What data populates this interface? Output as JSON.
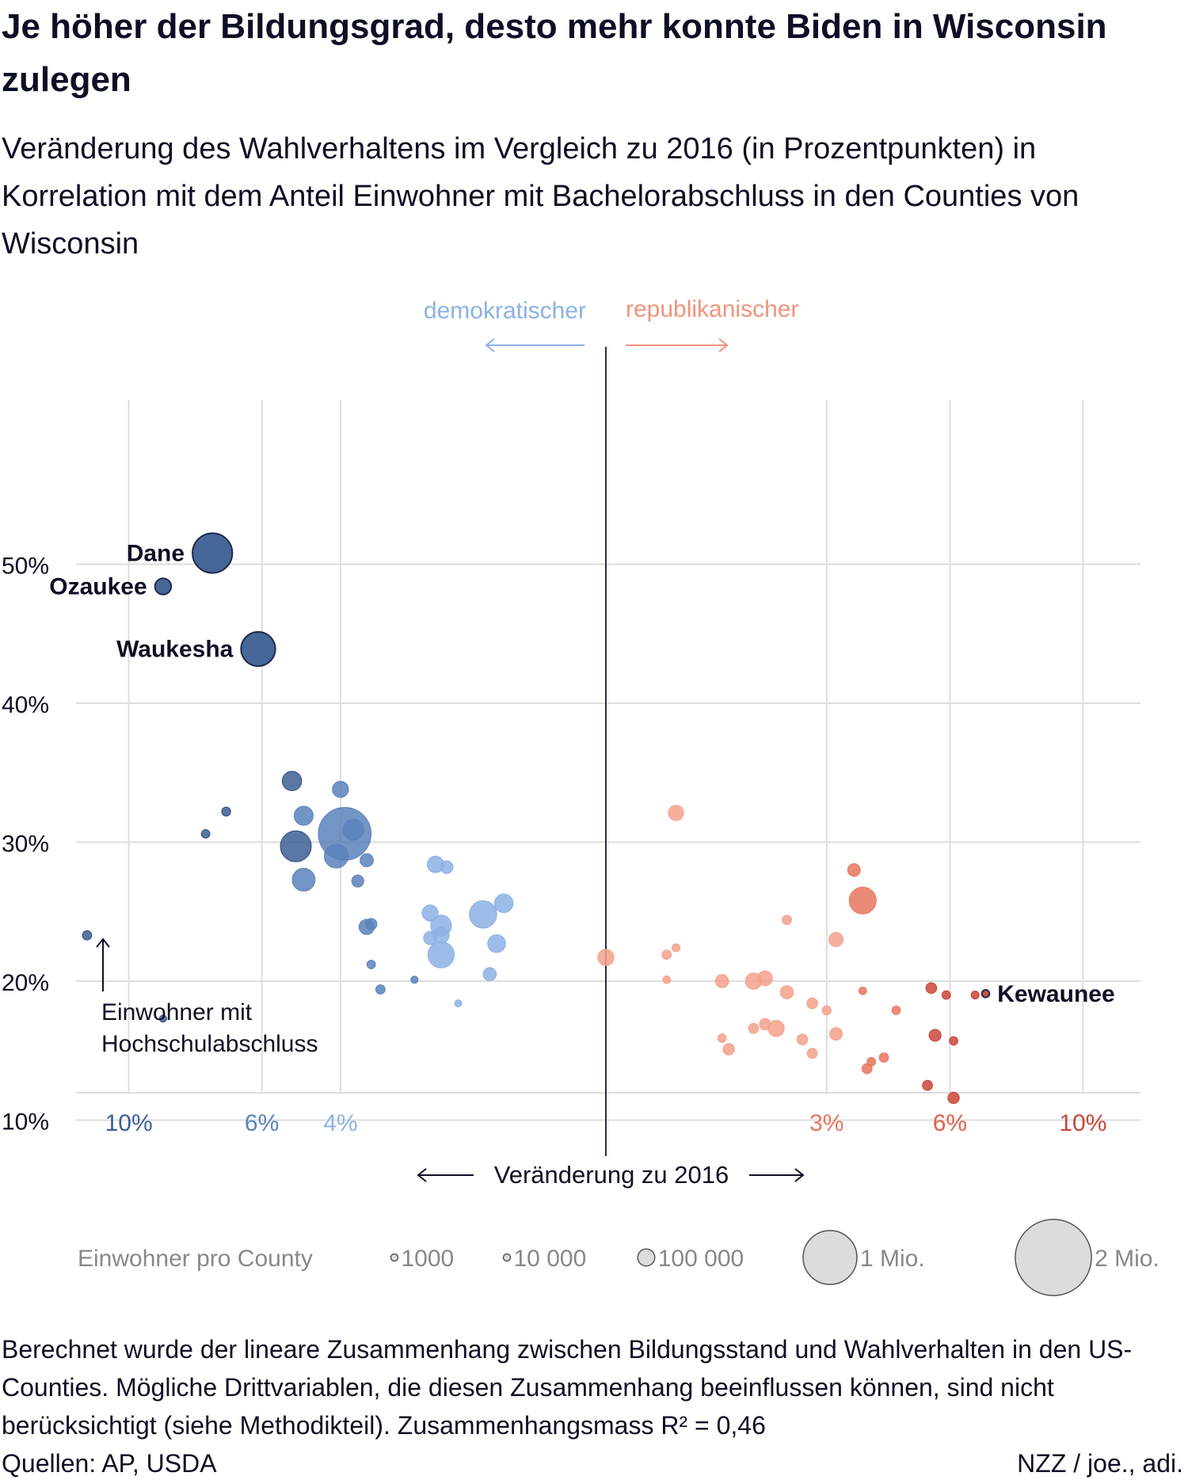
{
  "header": {
    "title": "Je höher der Bildungsgrad, desto mehr konnte Biden in Wisconsin zulegen",
    "subtitle": "Veränderung des Wahlverhaltens im Vergleich zu 2016 (in Prozentpunkten) in Korrelation mit dem Anteil Einwohner mit Bachelorabschluss in den Counties von Wisconsin"
  },
  "footer": {
    "note": "Berechnet wurde der lineare Zusammenhang zwischen Bildungsstand und Wahlverhalten in den US-Counties. Mögliche Drittvariablen, die diesen Zusammenhang beeinflussen können, sind nicht berücksichtigt (siehe Methodikteil). Zusammenhangsmass R² = 0,46",
    "source": "Quellen: AP, USDA",
    "credit": "NZZ / joe., adi."
  },
  "colors": {
    "dem_dark": "#3d5f93",
    "dem_mid": "#5b82bb",
    "dem_light": "#8cb2e4",
    "rep_light": "#f5a18b",
    "rep_mid": "#e8765f",
    "rep_dark": "#c9473a",
    "axis_label_dem": "#8cb2e4",
    "axis_label_rep": "#f0937c",
    "grid": "#dddddd",
    "center_line": "#2b2d4a",
    "text": "#0d0f24",
    "legend_text": "#888888",
    "legend_fill": "#dcdcdc"
  },
  "chart_data": {
    "type": "scatter",
    "title": "Je höher der Bildungsgrad, desto mehr konnte Biden in Wisconsin zulegen",
    "xlabel": "Veränderung zu 2016",
    "ylabel": "Einwohner mit Hochschulabschluss",
    "x_scale": "signed symmetric power scale (shift in percentage points, negative = demokratischer)",
    "xlim": [
      -13.5,
      12
    ],
    "ylim": [
      0,
      55
    ],
    "x_ticks": [
      {
        "value": -10,
        "label": "10%",
        "color": "#3d5f93"
      },
      {
        "value": -6,
        "label": "6%",
        "color": "#5b82bb"
      },
      {
        "value": -4,
        "label": "4%",
        "color": "#8cb2e4"
      },
      {
        "value": 3,
        "label": "3%",
        "color": "#e8765f"
      },
      {
        "value": 6,
        "label": "6%",
        "color": "#e0604c"
      },
      {
        "value": 10,
        "label": "10%",
        "color": "#c9473a"
      }
    ],
    "y_ticks": [
      {
        "value": 50,
        "label": "50%"
      },
      {
        "value": 40,
        "label": "40%"
      },
      {
        "value": 30,
        "label": "30%"
      },
      {
        "value": 20,
        "label": "20%"
      },
      {
        "value": 10,
        "label": "10%"
      }
    ],
    "direction_labels": {
      "left": "demokratischer",
      "right": "republikanischer"
    },
    "axis_title": "Veränderung zu 2016",
    "y_axis_title": "Einwohner mit Hochschulabschluss",
    "grid": true,
    "legend": {
      "title": "Einwohner pro County",
      "position": "bottom",
      "items": [
        {
          "label": "1000",
          "population": 1000
        },
        {
          "label": "10 000",
          "population": 10000
        },
        {
          "label": "100 000",
          "population": 100000
        },
        {
          "label": "1 Mio.",
          "population": 1000000
        },
        {
          "label": "2 Mio.",
          "population": 2000000
        }
      ]
    },
    "points": [
      {
        "name": "Dane",
        "x": -7.4,
        "y": 50.8,
        "pop": 546000,
        "label": "Dane"
      },
      {
        "name": "Ozaukee",
        "x": -8.9,
        "y": 48.4,
        "pop": 90000,
        "label": "Ozaukee"
      },
      {
        "name": "Waukesha",
        "x": -6.1,
        "y": 43.9,
        "pop": 404000,
        "label": "Waukesha"
      },
      {
        "name": "Kewaunee",
        "x": 7.0,
        "y": 19.1,
        "pop": 20000,
        "label": "Kewaunee"
      },
      {
        "x": -11.4,
        "y": 23.3,
        "pop": 30000
      },
      {
        "x": -8.9,
        "y": 17.3,
        "pop": 15000
      },
      {
        "x": -7.0,
        "y": 32.2,
        "pop": 28000
      },
      {
        "x": -7.6,
        "y": 30.6,
        "pop": 25000
      },
      {
        "x": -5.2,
        "y": 34.4,
        "pop": 130000
      },
      {
        "x": -4.9,
        "y": 31.9,
        "pop": 125000
      },
      {
        "x": -5.1,
        "y": 29.7,
        "pop": 330000
      },
      {
        "x": -4.9,
        "y": 27.3,
        "pop": 180000
      },
      {
        "x": -4.0,
        "y": 33.8,
        "pop": 90000
      },
      {
        "x": -4.1,
        "y": 29.0,
        "pop": 200000
      },
      {
        "x": -3.9,
        "y": 30.6,
        "pop": 960000
      },
      {
        "x": -3.7,
        "y": 30.9,
        "pop": 150000
      },
      {
        "x": -3.4,
        "y": 28.7,
        "pop": 60000
      },
      {
        "x": -3.6,
        "y": 27.2,
        "pop": 50000
      },
      {
        "x": -3.3,
        "y": 24.1,
        "pop": 45000
      },
      {
        "x": -3.4,
        "y": 23.9,
        "pop": 80000
      },
      {
        "x": -3.3,
        "y": 21.2,
        "pop": 25000
      },
      {
        "x": -3.1,
        "y": 19.4,
        "pop": 30000
      },
      {
        "x": -2.0,
        "y": 28.4,
        "pop": 95000
      },
      {
        "x": -1.8,
        "y": 28.2,
        "pop": 55000
      },
      {
        "x": -2.1,
        "y": 24.9,
        "pop": 90000
      },
      {
        "x": -1.9,
        "y": 24.0,
        "pop": 150000
      },
      {
        "x": -1.9,
        "y": 23.3,
        "pop": 90000
      },
      {
        "x": -2.1,
        "y": 23.1,
        "pop": 60000
      },
      {
        "x": -1.9,
        "y": 21.9,
        "pop": 240000
      },
      {
        "x": -1.2,
        "y": 24.8,
        "pop": 260000
      },
      {
        "x": -0.9,
        "y": 25.6,
        "pop": 120000
      },
      {
        "x": -1.0,
        "y": 22.7,
        "pop": 110000
      },
      {
        "x": -1.1,
        "y": 20.5,
        "pop": 60000
      },
      {
        "x": -2.4,
        "y": 20.1,
        "pop": 18000
      },
      {
        "x": -1.6,
        "y": 18.4,
        "pop": 12000
      },
      {
        "x": 0.0,
        "y": 21.7,
        "pop": 90000
      },
      {
        "x": 0.4,
        "y": 21.9,
        "pop": 30000
      },
      {
        "x": 0.5,
        "y": 22.4,
        "pop": 22000
      },
      {
        "x": 0.5,
        "y": 32.1,
        "pop": 80000
      },
      {
        "x": 0.4,
        "y": 20.1,
        "pop": 20000
      },
      {
        "x": 1.1,
        "y": 20.0,
        "pop": 60000
      },
      {
        "x": 1.6,
        "y": 20.0,
        "pop": 90000
      },
      {
        "x": 1.8,
        "y": 20.2,
        "pop": 75000
      },
      {
        "x": 2.2,
        "y": 19.2,
        "pop": 60000
      },
      {
        "x": 2.2,
        "y": 24.4,
        "pop": 30000
      },
      {
        "x": 1.1,
        "y": 15.9,
        "pop": 25000
      },
      {
        "x": 1.2,
        "y": 15.1,
        "pop": 45000
      },
      {
        "x": 1.6,
        "y": 16.6,
        "pop": 35000
      },
      {
        "x": 1.8,
        "y": 16.9,
        "pop": 45000
      },
      {
        "x": 2.0,
        "y": 16.6,
        "pop": 90000
      },
      {
        "x": 2.5,
        "y": 15.8,
        "pop": 40000
      },
      {
        "x": 2.7,
        "y": 14.8,
        "pop": 35000
      },
      {
        "x": 2.7,
        "y": 18.4,
        "pop": 40000
      },
      {
        "x": 3.0,
        "y": 17.9,
        "pop": 28000
      },
      {
        "x": 3.2,
        "y": 23.0,
        "pop": 70000
      },
      {
        "x": 3.2,
        "y": 16.2,
        "pop": 55000
      },
      {
        "x": 3.6,
        "y": 28.0,
        "pop": 55000
      },
      {
        "x": 3.8,
        "y": 25.8,
        "pop": 250000
      },
      {
        "x": 3.8,
        "y": 19.3,
        "pop": 20000
      },
      {
        "x": 3.9,
        "y": 13.7,
        "pop": 35000
      },
      {
        "x": 4.0,
        "y": 14.2,
        "pop": 25000
      },
      {
        "x": 4.3,
        "y": 14.5,
        "pop": 30000
      },
      {
        "x": 4.6,
        "y": 17.9,
        "pop": 25000
      },
      {
        "x": 5.5,
        "y": 19.5,
        "pop": 40000
      },
      {
        "x": 5.6,
        "y": 16.1,
        "pop": 50000
      },
      {
        "x": 5.4,
        "y": 12.5,
        "pop": 35000
      },
      {
        "x": 5.9,
        "y": 19.0,
        "pop": 25000
      },
      {
        "x": 6.1,
        "y": 15.7,
        "pop": 25000
      },
      {
        "x": 6.1,
        "y": 11.6,
        "pop": 45000
      },
      {
        "x": 6.7,
        "y": 19.0,
        "pop": 22000
      }
    ]
  }
}
